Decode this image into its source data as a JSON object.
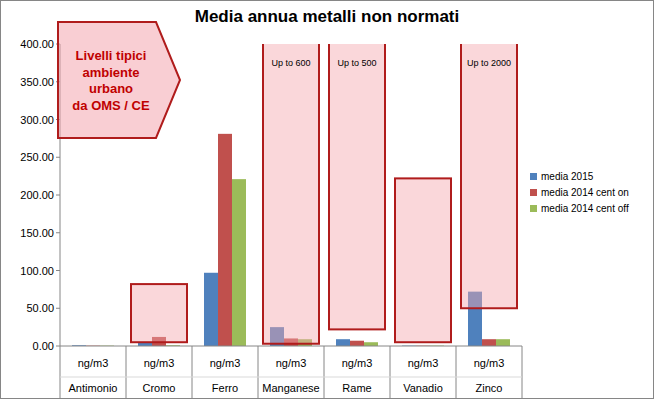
{
  "chart_data": {
    "type": "bar",
    "title": "Media annua metalli non normati",
    "categories": [
      "Antimonio",
      "Cromo",
      "Ferro",
      "Manganese",
      "Rame",
      "Vanadio",
      "Zinco"
    ],
    "category_units": [
      "ng/m3",
      "ng/m3",
      "ng/m3",
      "ng/m3",
      "ng/m3",
      "ng/m3",
      "ng/m3"
    ],
    "series": [
      {
        "name": "media 2015",
        "color": "#4f81bd",
        "values": [
          1,
          4,
          97,
          25,
          9,
          0.5,
          72
        ]
      },
      {
        "name": "media 2014 cent on",
        "color": "#c0504d",
        "values": [
          0.5,
          12,
          281,
          10,
          7,
          0.5,
          9
        ]
      },
      {
        "name": "media 2014 cent off",
        "color": "#9bbb59",
        "values": [
          0.5,
          1,
          221,
          9,
          5,
          0.5,
          9
        ]
      }
    ],
    "ylim": [
      0,
      400
    ],
    "yticks": [
      {
        "value": 0,
        "label": "0.00"
      },
      {
        "value": 50,
        "label": "50.00"
      },
      {
        "value": 100,
        "label": "100.00"
      },
      {
        "value": 150,
        "label": "150.00"
      },
      {
        "value": 200,
        "label": "200.00"
      },
      {
        "value": 250,
        "label": "250.00"
      },
      {
        "value": 300,
        "label": "300.00"
      },
      {
        "value": 350,
        "label": "350.00"
      },
      {
        "value": 400,
        "label": "400.00"
      }
    ],
    "range_low": [
      null,
      5,
      null,
      3,
      22,
      5,
      50
    ],
    "range_high": [
      null,
      82,
      null,
      600,
      500,
      222,
      2000
    ],
    "range_labels": [
      null,
      null,
      null,
      "Up to 600",
      "Up to 500",
      null,
      "Up to 2000"
    ],
    "annotation_lines": [
      "Livelli tipici",
      "ambiente",
      "urbano",
      "da OMS / CE"
    ],
    "grid": false,
    "legend": "right"
  }
}
